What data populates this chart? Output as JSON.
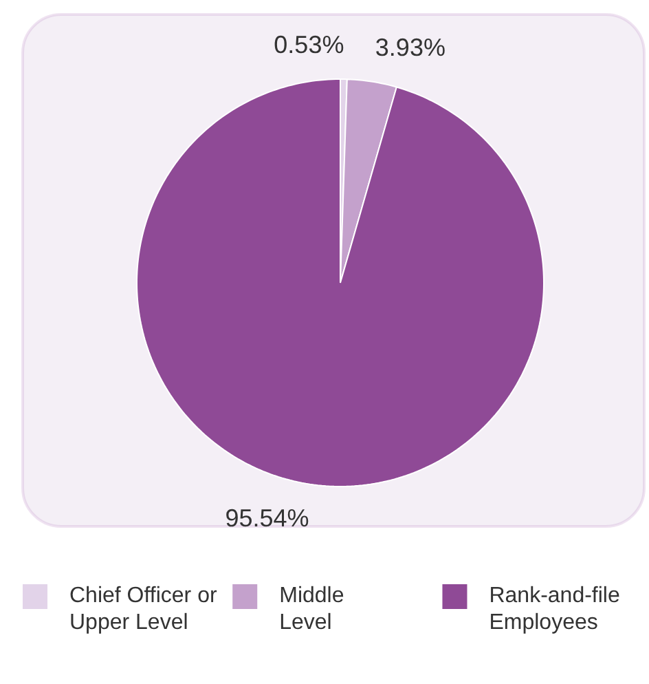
{
  "chart_data": {
    "type": "pie",
    "categories": [
      "Chief Officer or\nUpper Level",
      "Middle\nLevel",
      "Rank-and-file\nEmployees"
    ],
    "values": [
      0.53,
      3.93,
      95.54
    ],
    "colors": [
      "#e2d3e9",
      "#c4a1cc",
      "#8f4a96"
    ],
    "value_labels": [
      "0.53%",
      "3.93%",
      "95.54%"
    ],
    "legend": "bottom"
  }
}
